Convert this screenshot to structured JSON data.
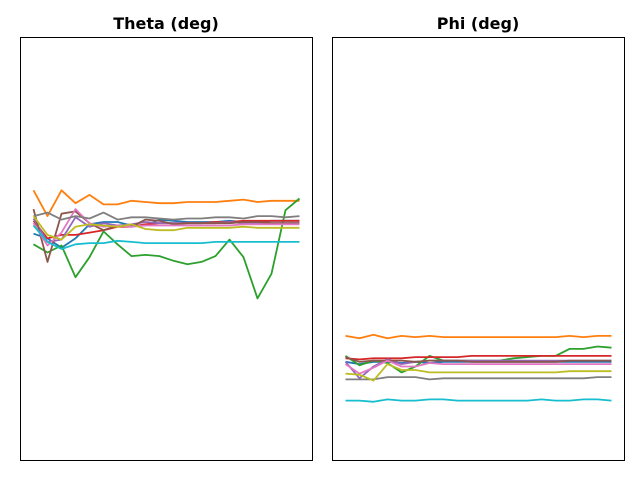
{
  "chart_data": [
    {
      "type": "line",
      "title": "Theta (deg)",
      "xlabel": "",
      "ylabel": "",
      "axis_ticks_visible": false,
      "ylim": [
        -90,
        90
      ],
      "x": [
        0,
        1,
        2,
        3,
        4,
        5,
        6,
        7,
        8,
        9,
        10,
        11,
        12,
        13,
        14,
        15,
        16,
        17,
        18,
        19
      ],
      "series": [
        {
          "color": "#1f77b4",
          "values": [
            6.5,
            4.5,
            0.5,
            4.5,
            10.5,
            11.5,
            11.5,
            10,
            10,
            12.5,
            12,
            11.5,
            11.5,
            11.5,
            12,
            11.5,
            11.5,
            12,
            12,
            12
          ]
        },
        {
          "color": "#ff7f0e",
          "values": [
            25,
            14,
            25,
            19.5,
            23,
            19,
            19,
            20.5,
            20,
            19.5,
            19.5,
            20,
            20,
            20,
            20.5,
            21,
            20,
            20.5,
            20.5,
            20.5
          ]
        },
        {
          "color": "#2ca02c",
          "values": [
            2,
            -1.5,
            1.5,
            -12,
            -3.5,
            7.5,
            2,
            -3,
            -2.5,
            -3,
            -5,
            -6.5,
            -5.5,
            -3,
            4,
            -3.5,
            -21,
            -10.5,
            16.5,
            21.5
          ]
        },
        {
          "color": "#d62728",
          "values": [
            12,
            4.5,
            6,
            6,
            7,
            8,
            9.5,
            9.5,
            10.5,
            11,
            11,
            11,
            11,
            11.5,
            11.5,
            12,
            12,
            12,
            12,
            12
          ]
        },
        {
          "color": "#9467bd",
          "values": [
            13,
            3,
            4,
            13.5,
            9.5,
            11,
            10,
            10.5,
            11.5,
            11,
            11,
            11,
            11,
            11,
            11.5,
            11,
            11,
            11,
            11,
            11
          ]
        },
        {
          "color": "#8c564b",
          "values": [
            17,
            -5.5,
            15,
            16,
            11,
            8,
            10,
            9.5,
            12.5,
            12,
            10.5,
            11,
            11,
            11,
            11,
            11.5,
            11.5,
            11,
            11,
            11
          ]
        },
        {
          "color": "#e377c2",
          "values": [
            11,
            1.5,
            7,
            17,
            11,
            9.5,
            10,
            9.5,
            10,
            10,
            10,
            10,
            10,
            10,
            10,
            10.5,
            10.5,
            10.5,
            10.5,
            10.5
          ]
        },
        {
          "color": "#7f7f7f",
          "values": [
            14,
            15.5,
            12.5,
            14,
            13,
            15.5,
            12.5,
            13.5,
            13.5,
            13,
            12.5,
            13,
            13,
            13.5,
            13.5,
            13,
            14,
            14,
            13.5,
            14
          ]
        },
        {
          "color": "#bcbd22",
          "values": [
            14,
            6,
            4,
            9.5,
            10.5,
            10,
            9.5,
            10.5,
            8.5,
            8,
            8,
            9,
            9,
            9,
            9,
            9.5,
            9,
            9,
            9,
            9
          ]
        },
        {
          "color": "#17becf",
          "values": [
            10,
            3,
            0,
            2,
            2.5,
            2.5,
            3.5,
            3,
            2.5,
            2.5,
            2.5,
            2.5,
            2.5,
            3,
            3,
            3,
            3,
            3,
            3,
            3
          ]
        }
      ]
    },
    {
      "type": "line",
      "title": "Phi (deg)",
      "xlabel": "",
      "ylabel": "",
      "axis_ticks_visible": false,
      "ylim": [
        -90,
        90
      ],
      "x": [
        0,
        1,
        2,
        3,
        4,
        5,
        6,
        7,
        8,
        9,
        10,
        11,
        12,
        13,
        14,
        15,
        16,
        17,
        18,
        19
      ],
      "series": [
        {
          "color": "#1f77b4",
          "values": [
            -48,
            -49,
            -48,
            -48,
            -48.5,
            -48,
            -48.5,
            -48,
            -48,
            -48,
            -48,
            -48,
            -48,
            -48,
            -48,
            -48,
            -48,
            -48,
            -48,
            -48
          ]
        },
        {
          "color": "#ff7f0e",
          "values": [
            -37,
            -38,
            -36.5,
            -38,
            -37,
            -37.5,
            -37,
            -37.5,
            -37.5,
            -37.5,
            -37.5,
            -37.5,
            -37.5,
            -37.5,
            -37.5,
            -37.5,
            -37,
            -37.5,
            -37,
            -37
          ]
        },
        {
          "color": "#2ca02c",
          "values": [
            -45.5,
            -49.5,
            -47.5,
            -48.5,
            -52.5,
            -50,
            -45.5,
            -47.5,
            -47.5,
            -47.5,
            -47.5,
            -47.5,
            -46.5,
            -46,
            -45.5,
            -45.5,
            -42.5,
            -42.5,
            -41.5,
            -42
          ]
        },
        {
          "color": "#d62728",
          "values": [
            -46.5,
            -47,
            -46.5,
            -46.5,
            -46.5,
            -46,
            -46,
            -46,
            -46,
            -45.5,
            -45.5,
            -45.5,
            -45.5,
            -45.5,
            -45.5,
            -45.5,
            -45.5,
            -45.5,
            -45.5,
            -45.5
          ]
        },
        {
          "color": "#9467bd",
          "values": [
            -48,
            -55,
            -50,
            -47,
            -49,
            -48,
            -47.5,
            -47.5,
            -47.5,
            -47.5,
            -47.5,
            -47.5,
            -47.5,
            -47.5,
            -47.5,
            -47.5,
            -47.5,
            -47.5,
            -47.5,
            -47.5
          ]
        },
        {
          "color": "#8c564b",
          "values": [
            -46,
            -48,
            -47.5,
            -47.5,
            -47.5,
            -48,
            -47.5,
            -47.5,
            -47.5,
            -48,
            -48,
            -48,
            -48,
            -48,
            -48,
            -48,
            -47.5,
            -47.5,
            -47.5,
            -47.5
          ]
        },
        {
          "color": "#e377c2",
          "values": [
            -49,
            -53,
            -50.5,
            -47.5,
            -50,
            -50,
            -48.5,
            -49,
            -49,
            -49,
            -49,
            -49,
            -49,
            -49,
            -49,
            -49,
            -49,
            -49,
            -49,
            -49
          ]
        },
        {
          "color": "#7f7f7f",
          "values": [
            -55.5,
            -55.5,
            -55.5,
            -54.5,
            -54.5,
            -54.5,
            -55.5,
            -55,
            -55,
            -55,
            -55,
            -55,
            -55,
            -55,
            -55,
            -55,
            -55,
            -55,
            -54.5,
            -54.5
          ]
        },
        {
          "color": "#bcbd22",
          "values": [
            -53,
            -53.5,
            -56,
            -49,
            -51.5,
            -51.5,
            -52.5,
            -52.5,
            -52.5,
            -52.5,
            -52.5,
            -52.5,
            -52.5,
            -52.5,
            -52.5,
            -52.5,
            -52,
            -52,
            -52,
            -52
          ]
        },
        {
          "color": "#17becf",
          "values": [
            -64.5,
            -64.5,
            -65,
            -64,
            -64.5,
            -64.5,
            -64,
            -64,
            -64.5,
            -64.5,
            -64.5,
            -64.5,
            -64.5,
            -64.5,
            -64,
            -64.5,
            -64.5,
            -64,
            -64,
            -64.5
          ]
        }
      ]
    }
  ]
}
